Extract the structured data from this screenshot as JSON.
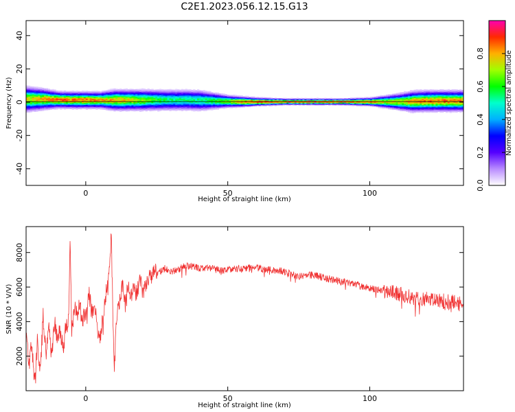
{
  "figure": {
    "title": "C2E1.2023.056.12.15.G13"
  },
  "chart_data": [
    {
      "type": "heatmap",
      "title": "",
      "xlabel": "Height of straight line (km)",
      "ylabel": "Frequency (Hz)",
      "xlim": [
        -21,
        133
      ],
      "ylim": [
        -50,
        49
      ],
      "xticks": [
        0,
        50,
        100
      ],
      "yticks": [
        -40,
        -20,
        0,
        20,
        40
      ],
      "ytick_labels": [
        "-40",
        "-20",
        "0",
        "20",
        "40"
      ],
      "colorbar": {
        "label": "Normalized spectral amplitude",
        "range": [
          0,
          1
        ],
        "ticks": [
          0.0,
          0.2,
          0.4,
          0.6,
          0.8
        ],
        "tick_labels": [
          "0.0",
          "0.2",
          "0.4",
          "0.6",
          "0.8"
        ],
        "colormap": [
          "#ffffff",
          "#b98cff",
          "#5500ff",
          "#0000ff",
          "#00b0ff",
          "#00ffcc",
          "#00ff00",
          "#a0ff00",
          "#ffb000",
          "#ff2a00",
          "#ff00b0"
        ]
      },
      "band_profile": {
        "x": [
          -21,
          -15,
          -10,
          -5,
          0,
          5,
          10,
          15,
          20,
          25,
          30,
          35,
          40,
          45,
          50,
          55,
          60,
          70,
          80,
          90,
          100,
          105,
          110,
          115,
          120,
          125,
          130,
          133
        ],
        "center_hz": [
          1.5,
          1.5,
          1.2,
          1.0,
          1.0,
          1.0,
          1.0,
          1.0,
          1.0,
          1.0,
          1.0,
          1.0,
          0.8,
          0.5,
          0.2,
          0.0,
          0.0,
          0.0,
          0.0,
          0.0,
          0.0,
          0.0,
          0.0,
          0.2,
          0.5,
          0.5,
          0.5,
          0.5
        ],
        "halfwidth_hz": [
          6,
          5,
          4,
          4,
          4,
          4,
          5,
          5,
          5,
          5,
          5,
          5,
          5,
          4,
          3,
          2.5,
          2,
          1.5,
          1.5,
          1.5,
          2,
          3,
          4,
          5,
          5,
          5,
          5,
          5
        ],
        "peak_amplitude": [
          0.75,
          0.8,
          0.85,
          0.85,
          0.85,
          0.8,
          0.8,
          0.75,
          0.7,
          0.6,
          0.55,
          0.55,
          0.55,
          0.6,
          0.7,
          0.85,
          0.9,
          0.9,
          0.9,
          0.9,
          0.85,
          0.75,
          0.75,
          0.8,
          0.85,
          0.85,
          0.85,
          0.85
        ]
      },
      "grid": false
    },
    {
      "type": "line",
      "title": "",
      "xlabel": "Height of straight line (km)",
      "ylabel": "SNR (10 * V/V)",
      "xlim": [
        -21,
        133
      ],
      "ylim": [
        0,
        9500
      ],
      "xticks": [
        0,
        50,
        100
      ],
      "yticks": [
        2000,
        4000,
        6000,
        8000
      ],
      "color": "#f03030",
      "series": [
        {
          "x": [
            -21,
            -20,
            -19,
            -18,
            -17,
            -16,
            -15,
            -14,
            -13,
            -12,
            -11,
            -10,
            -9,
            -8,
            -7,
            -6,
            -5.5,
            -5,
            -4,
            -3,
            -2,
            -1,
            0,
            1,
            2,
            3,
            4,
            5,
            6,
            7,
            8,
            9,
            9.5,
            10,
            11,
            12,
            13,
            14,
            15,
            16,
            17,
            18,
            19,
            20,
            22,
            24,
            26,
            28,
            30,
            32,
            35,
            38,
            40,
            45,
            50,
            55,
            60,
            65,
            70,
            75,
            80,
            85,
            90,
            95,
            100,
            105,
            110,
            115,
            120,
            125,
            130,
            133
          ],
          "values": [
            3500,
            1200,
            2800,
            500,
            3000,
            1000,
            4300,
            2200,
            3900,
            2000,
            4000,
            2800,
            3500,
            2500,
            3600,
            4200,
            9400,
            3500,
            4800,
            4300,
            5200,
            4100,
            4600,
            5800,
            4700,
            4800,
            3900,
            2700,
            4300,
            5600,
            6300,
            9000,
            4800,
            900,
            4600,
            5100,
            6200,
            5000,
            6100,
            5500,
            6200,
            5400,
            6600,
            5800,
            6400,
            6800,
            6900,
            7100,
            6900,
            7000,
            7200,
            7200,
            7100,
            7100,
            7000,
            7100,
            7100,
            7000,
            6900,
            6600,
            6700,
            6500,
            6300,
            6200,
            5900,
            5800,
            5600,
            5400,
            5300,
            5200,
            5100,
            5000
          ]
        }
      ],
      "grid": false
    }
  ]
}
